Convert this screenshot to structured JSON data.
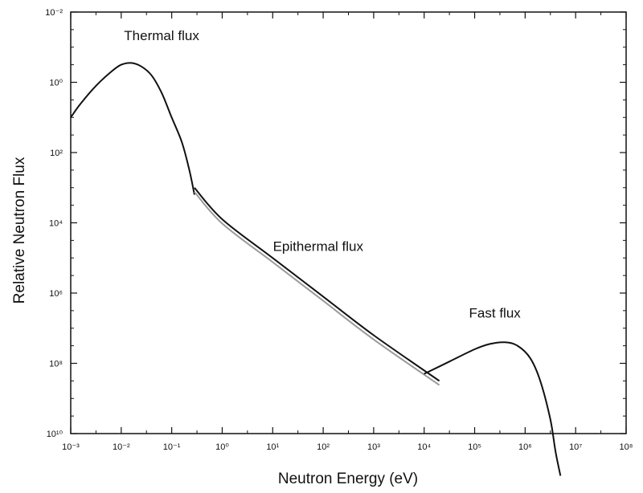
{
  "chart_data": {
    "type": "line",
    "title": "",
    "xlabel": "Neutron Energy (eV)",
    "ylabel": "Relative Neutron Flux",
    "x_scale": "log",
    "y_scale": "log",
    "xlim": [
      -3,
      8
    ],
    "ylim": [
      -2,
      10
    ],
    "x_tick_labels": [
      "10⁻³",
      "10⁻²",
      "10⁻¹",
      "10⁰",
      "10¹",
      "10²",
      "10³",
      "10⁴",
      "10⁵",
      "10⁶",
      "10⁷",
      "10⁸"
    ],
    "y_tick_labels": [
      "10⁻²",
      "10⁰",
      "10²",
      "10⁴",
      "10⁶",
      "10⁸",
      "10¹⁰"
    ],
    "grid": false,
    "series": [
      {
        "name": "Thermal flux",
        "points": [
          [
            -3.0,
            1.0
          ],
          [
            -2.8,
            0.6
          ],
          [
            -2.5,
            0.1
          ],
          [
            -2.2,
            -0.3
          ],
          [
            -2.0,
            -0.5
          ],
          [
            -1.8,
            -0.55
          ],
          [
            -1.6,
            -0.45
          ],
          [
            -1.4,
            -0.2
          ],
          [
            -1.2,
            0.3
          ],
          [
            -1.0,
            1.0
          ],
          [
            -0.8,
            1.7
          ],
          [
            -0.65,
            2.5
          ],
          [
            -0.55,
            3.2
          ]
        ]
      },
      {
        "name": "Epithermal flux",
        "points": [
          [
            -0.55,
            3.0
          ],
          [
            0.0,
            3.9
          ],
          [
            1.0,
            5.0
          ],
          [
            2.0,
            6.1
          ],
          [
            3.0,
            7.2
          ],
          [
            4.3,
            8.5
          ]
        ]
      },
      {
        "name": "Fast flux",
        "points": [
          [
            4.0,
            8.3
          ],
          [
            4.5,
            7.95
          ],
          [
            5.0,
            7.6
          ],
          [
            5.3,
            7.45
          ],
          [
            5.6,
            7.4
          ],
          [
            5.85,
            7.5
          ],
          [
            6.1,
            7.85
          ],
          [
            6.3,
            8.5
          ],
          [
            6.5,
            9.6
          ],
          [
            6.6,
            10.5
          ],
          [
            6.7,
            11.2
          ]
        ]
      }
    ],
    "annotations": [
      {
        "text": "Thermal flux",
        "near_series": "Thermal flux",
        "x": -1.2,
        "y": -1.2
      },
      {
        "text": "Epithermal flux",
        "near_series": "Epithermal flux",
        "x": 1.9,
        "y": 4.8
      },
      {
        "text": "Fast flux",
        "near_series": "Fast flux",
        "x": 5.4,
        "y": 6.7
      }
    ],
    "stroke_color": "#111111"
  }
}
